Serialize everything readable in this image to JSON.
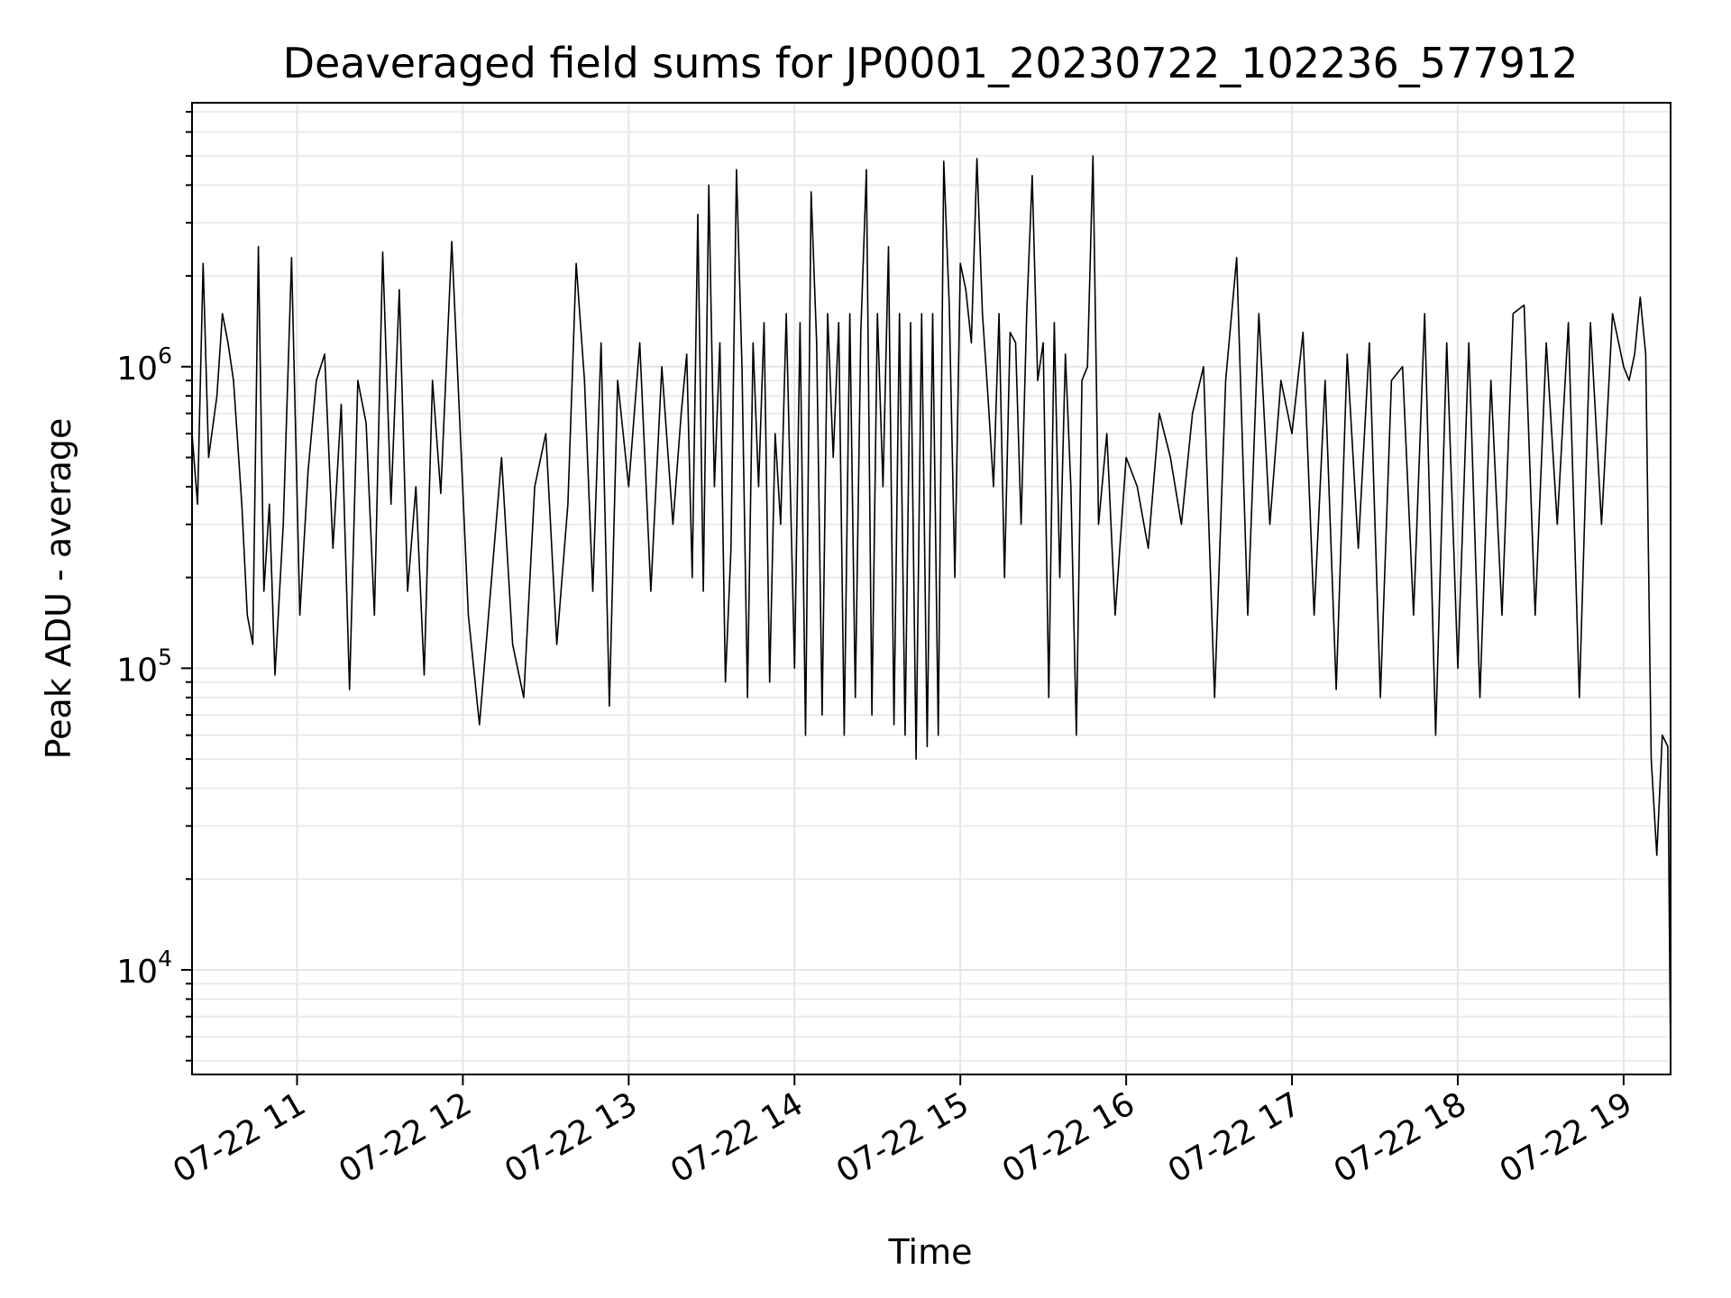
{
  "chart_data": {
    "type": "line",
    "title": "Deaveraged field sums for JP0001_20230722_102236_577912",
    "xlabel": "Time",
    "ylabel": "Peak ADU - average",
    "yscale": "log",
    "grid": true,
    "legend": "none",
    "line_color": "#000000",
    "xlim": [
      "2023-07-22 10:22",
      "2023-07-22 19:17"
    ],
    "ylim": [
      4500,
      7500000
    ],
    "x_ticks": [
      {
        "value": "2023-07-22 11:00",
        "label": "07-22 11"
      },
      {
        "value": "2023-07-22 12:00",
        "label": "07-22 12"
      },
      {
        "value": "2023-07-22 13:00",
        "label": "07-22 13"
      },
      {
        "value": "2023-07-22 14:00",
        "label": "07-22 14"
      },
      {
        "value": "2023-07-22 15:00",
        "label": "07-22 15"
      },
      {
        "value": "2023-07-22 16:00",
        "label": "07-22 16"
      },
      {
        "value": "2023-07-22 17:00",
        "label": "07-22 17"
      },
      {
        "value": "2023-07-22 18:00",
        "label": "07-22 18"
      },
      {
        "value": "2023-07-22 19:00",
        "label": "07-22 19"
      }
    ],
    "y_ticks": [
      {
        "value": 10000,
        "base": "10",
        "exp": "4"
      },
      {
        "value": 100000,
        "base": "10",
        "exp": "5"
      },
      {
        "value": 1000000,
        "base": "10",
        "exp": "6"
      }
    ],
    "series": [
      {
        "x": [
          "2023-07-22 10:22",
          "2023-07-22 10:24",
          "2023-07-22 10:26",
          "2023-07-22 10:28",
          "2023-07-22 10:31",
          "2023-07-22 10:33",
          "2023-07-22 10:35",
          "2023-07-22 10:37",
          "2023-07-22 10:40",
          "2023-07-22 10:42",
          "2023-07-22 10:44",
          "2023-07-22 10:46",
          "2023-07-22 10:48",
          "2023-07-22 10:50",
          "2023-07-22 10:52",
          "2023-07-22 10:55",
          "2023-07-22 10:58",
          "2023-07-22 11:01",
          "2023-07-22 11:04",
          "2023-07-22 11:07",
          "2023-07-22 11:10",
          "2023-07-22 11:13",
          "2023-07-22 11:16",
          "2023-07-22 11:19",
          "2023-07-22 11:22",
          "2023-07-22 11:25",
          "2023-07-22 11:28",
          "2023-07-22 11:31",
          "2023-07-22 11:34",
          "2023-07-22 11:37",
          "2023-07-22 11:40",
          "2023-07-22 11:43",
          "2023-07-22 11:46",
          "2023-07-22 11:49",
          "2023-07-22 11:52",
          "2023-07-22 11:56",
          "2023-07-22 12:02",
          "2023-07-22 12:06",
          "2023-07-22 12:10",
          "2023-07-22 12:14",
          "2023-07-22 12:18",
          "2023-07-22 12:22",
          "2023-07-22 12:26",
          "2023-07-22 12:30",
          "2023-07-22 12:34",
          "2023-07-22 12:38",
          "2023-07-22 12:41",
          "2023-07-22 12:44",
          "2023-07-22 12:47",
          "2023-07-22 12:50",
          "2023-07-22 12:53",
          "2023-07-22 12:56",
          "2023-07-22 13:00",
          "2023-07-22 13:04",
          "2023-07-22 13:08",
          "2023-07-22 13:12",
          "2023-07-22 13:16",
          "2023-07-22 13:19",
          "2023-07-22 13:21",
          "2023-07-22 13:23",
          "2023-07-22 13:25",
          "2023-07-22 13:27",
          "2023-07-22 13:29",
          "2023-07-22 13:31",
          "2023-07-22 13:33",
          "2023-07-22 13:35",
          "2023-07-22 13:37",
          "2023-07-22 13:39",
          "2023-07-22 13:41",
          "2023-07-22 13:43",
          "2023-07-22 13:45",
          "2023-07-22 13:47",
          "2023-07-22 13:49",
          "2023-07-22 13:51",
          "2023-07-22 13:53",
          "2023-07-22 13:55",
          "2023-07-22 13:57",
          "2023-07-22 14:00",
          "2023-07-22 14:02",
          "2023-07-22 14:04",
          "2023-07-22 14:06",
          "2023-07-22 14:08",
          "2023-07-22 14:10",
          "2023-07-22 14:12",
          "2023-07-22 14:14",
          "2023-07-22 14:16",
          "2023-07-22 14:18",
          "2023-07-22 14:20",
          "2023-07-22 14:22",
          "2023-07-22 14:24",
          "2023-07-22 14:26",
          "2023-07-22 14:28",
          "2023-07-22 14:30",
          "2023-07-22 14:32",
          "2023-07-22 14:34",
          "2023-07-22 14:36",
          "2023-07-22 14:38",
          "2023-07-22 14:40",
          "2023-07-22 14:42",
          "2023-07-22 14:44",
          "2023-07-22 14:46",
          "2023-07-22 14:48",
          "2023-07-22 14:50",
          "2023-07-22 14:52",
          "2023-07-22 14:54",
          "2023-07-22 14:56",
          "2023-07-22 14:58",
          "2023-07-22 15:00",
          "2023-07-22 15:02",
          "2023-07-22 15:04",
          "2023-07-22 15:06",
          "2023-07-22 15:08",
          "2023-07-22 15:10",
          "2023-07-22 15:12",
          "2023-07-22 15:14",
          "2023-07-22 15:16",
          "2023-07-22 15:18",
          "2023-07-22 15:20",
          "2023-07-22 15:22",
          "2023-07-22 15:24",
          "2023-07-22 15:26",
          "2023-07-22 15:28",
          "2023-07-22 15:30",
          "2023-07-22 15:32",
          "2023-07-22 15:34",
          "2023-07-22 15:36",
          "2023-07-22 15:38",
          "2023-07-22 15:40",
          "2023-07-22 15:42",
          "2023-07-22 15:44",
          "2023-07-22 15:46",
          "2023-07-22 15:48",
          "2023-07-22 15:50",
          "2023-07-22 15:53",
          "2023-07-22 15:56",
          "2023-07-22 16:00",
          "2023-07-22 16:04",
          "2023-07-22 16:08",
          "2023-07-22 16:12",
          "2023-07-22 16:16",
          "2023-07-22 16:20",
          "2023-07-22 16:24",
          "2023-07-22 16:28",
          "2023-07-22 16:32",
          "2023-07-22 16:36",
          "2023-07-22 16:40",
          "2023-07-22 16:44",
          "2023-07-22 16:48",
          "2023-07-22 16:52",
          "2023-07-22 16:56",
          "2023-07-22 17:00",
          "2023-07-22 17:04",
          "2023-07-22 17:08",
          "2023-07-22 17:12",
          "2023-07-22 17:16",
          "2023-07-22 17:20",
          "2023-07-22 17:24",
          "2023-07-22 17:28",
          "2023-07-22 17:32",
          "2023-07-22 17:36",
          "2023-07-22 17:40",
          "2023-07-22 17:44",
          "2023-07-22 17:48",
          "2023-07-22 17:52",
          "2023-07-22 17:56",
          "2023-07-22 18:00",
          "2023-07-22 18:04",
          "2023-07-22 18:08",
          "2023-07-22 18:12",
          "2023-07-22 18:16",
          "2023-07-22 18:20",
          "2023-07-22 18:24",
          "2023-07-22 18:28",
          "2023-07-22 18:32",
          "2023-07-22 18:36",
          "2023-07-22 18:40",
          "2023-07-22 18:44",
          "2023-07-22 18:48",
          "2023-07-22 18:52",
          "2023-07-22 18:56",
          "2023-07-22 19:00",
          "2023-07-22 19:02",
          "2023-07-22 19:04",
          "2023-07-22 19:06",
          "2023-07-22 19:08",
          "2023-07-22 19:10",
          "2023-07-22 19:12",
          "2023-07-22 19:14",
          "2023-07-22 19:16",
          "2023-07-22 19:17"
        ],
        "y": [
          600000,
          350000,
          2200000,
          500000,
          800000,
          1500000,
          1200000,
          900000,
          350000,
          150000,
          120000,
          2500000,
          180000,
          350000,
          95000,
          300000,
          2300000,
          150000,
          450000,
          900000,
          1100000,
          250000,
          750000,
          85000,
          900000,
          650000,
          150000,
          2400000,
          350000,
          1800000,
          180000,
          400000,
          95000,
          900000,
          380000,
          2600000,
          150000,
          65000,
          180000,
          500000,
          120000,
          80000,
          400000,
          600000,
          120000,
          350000,
          2200000,
          900000,
          180000,
          1200000,
          75000,
          900000,
          400000,
          1200000,
          180000,
          1000000,
          300000,
          700000,
          1100000,
          200000,
          3200000,
          180000,
          4000000,
          400000,
          1200000,
          90000,
          250000,
          4500000,
          1000000,
          80000,
          1200000,
          400000,
          1400000,
          90000,
          600000,
          300000,
          1500000,
          100000,
          1400000,
          60000,
          3800000,
          1200000,
          70000,
          1500000,
          500000,
          1400000,
          60000,
          1500000,
          80000,
          1300000,
          4500000,
          70000,
          1500000,
          400000,
          2500000,
          65000,
          1500000,
          60000,
          1400000,
          50000,
          1500000,
          55000,
          1500000,
          60000,
          4800000,
          1600000,
          200000,
          2200000,
          1800000,
          1200000,
          4900000,
          1500000,
          800000,
          400000,
          1500000,
          200000,
          1300000,
          1200000,
          300000,
          1500000,
          4300000,
          900000,
          1200000,
          80000,
          1400000,
          200000,
          1100000,
          400000,
          60000,
          900000,
          1000000,
          5000000,
          300000,
          600000,
          150000,
          500000,
          400000,
          250000,
          700000,
          500000,
          300000,
          700000,
          1000000,
          80000,
          900000,
          2300000,
          150000,
          1500000,
          300000,
          900000,
          600000,
          1300000,
          150000,
          900000,
          85000,
          1100000,
          250000,
          1200000,
          80000,
          900000,
          1000000,
          150000,
          1500000,
          60000,
          1200000,
          100000,
          1200000,
          80000,
          900000,
          150000,
          1500000,
          1600000,
          150000,
          1200000,
          300000,
          1400000,
          80000,
          1400000,
          300000,
          1500000,
          1000000,
          900000,
          1100000,
          1700000,
          1100000,
          50000,
          24000,
          60000,
          55000,
          5000
        ]
      }
    ]
  }
}
